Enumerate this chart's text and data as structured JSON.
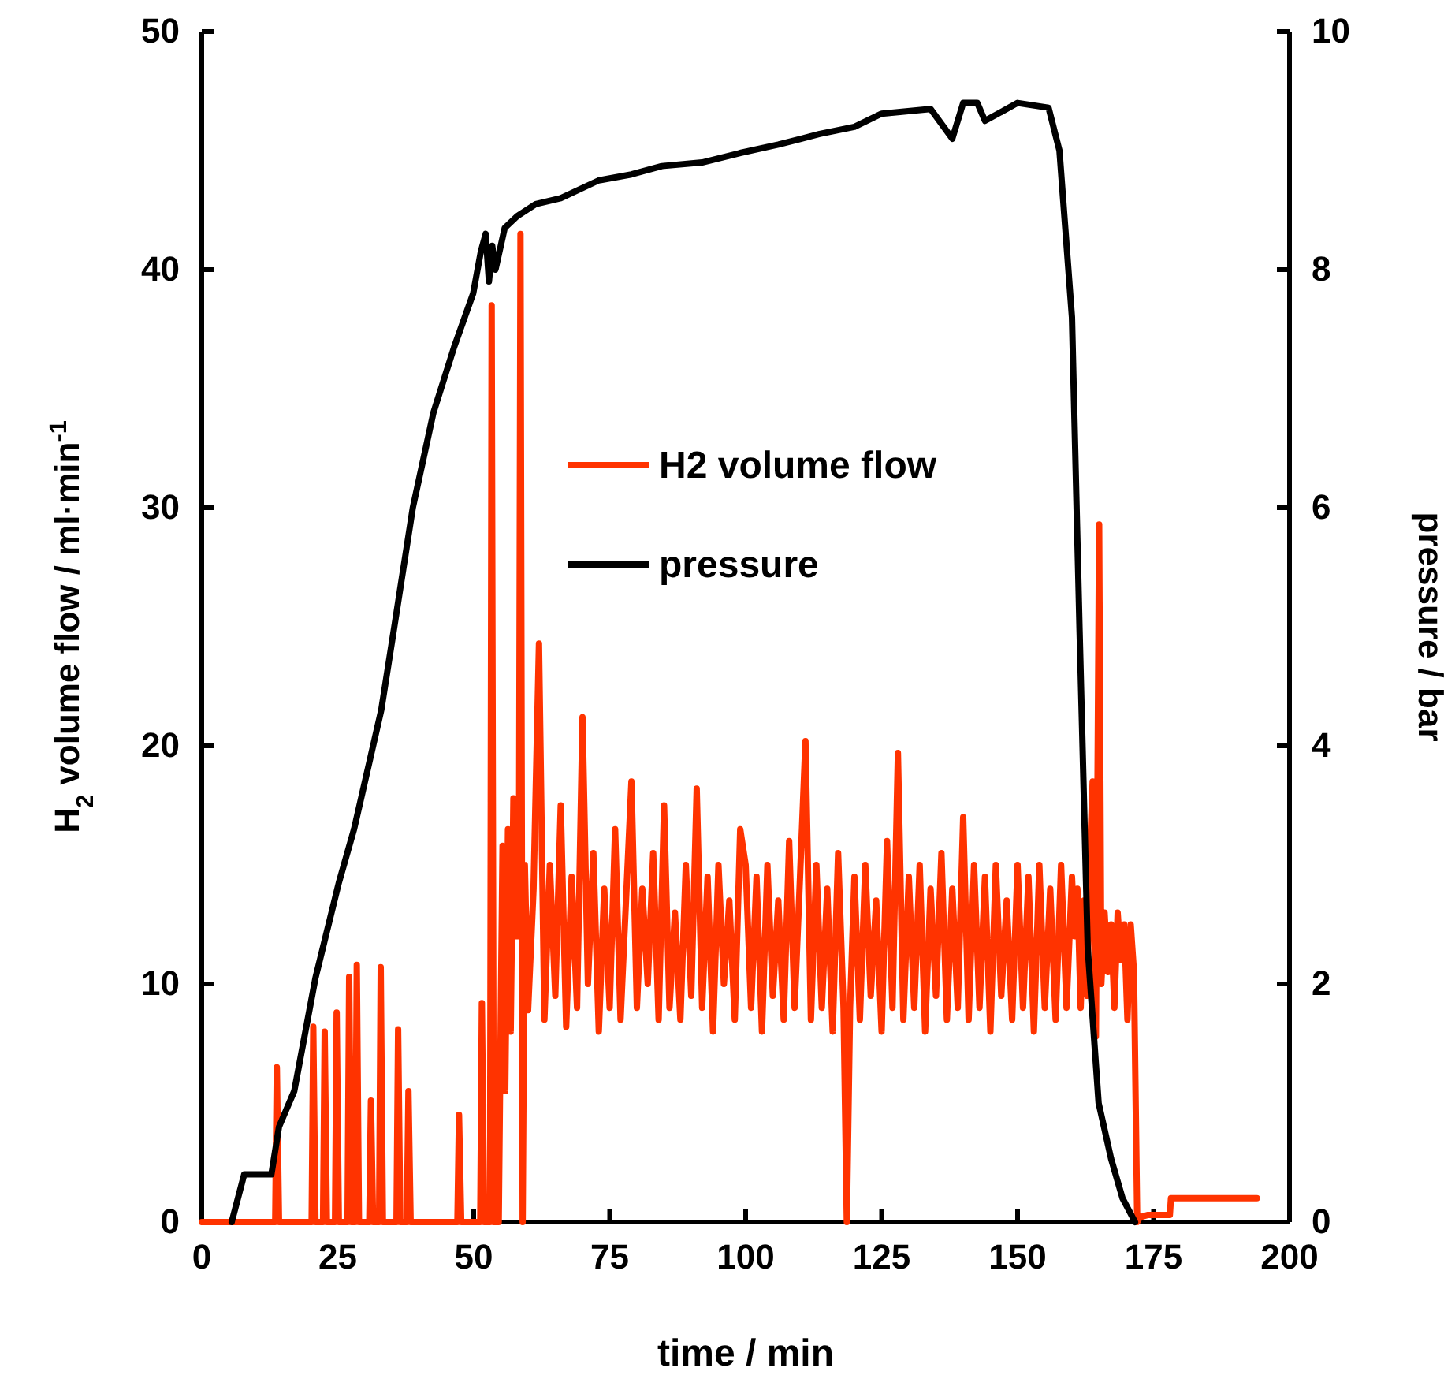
{
  "chart_data": {
    "type": "line",
    "xlabel": "time / min",
    "ylabel": "H$_{2}$ volume flow / ml·min$^{-1}$",
    "y2label": "pressure / bar",
    "xlim": [
      0,
      200
    ],
    "xticks": [
      0,
      25,
      50,
      75,
      100,
      125,
      150,
      175,
      200
    ],
    "ylim": [
      0,
      50
    ],
    "yticks": [
      0,
      10,
      20,
      30,
      40,
      50
    ],
    "y2lim": [
      0,
      10
    ],
    "y2ticks": [
      0,
      2,
      4,
      6,
      8,
      10
    ],
    "grid": false,
    "legend": "top",
    "line_style": "solid",
    "marker": "none",
    "series": [
      {
        "name": "H2 volume flow",
        "color": "#ff3300",
        "x": [
          0,
          13.5,
          13.8,
          14.2,
          20.2,
          20.5,
          20.9,
          22.3,
          22.6,
          23,
          24.5,
          24.8,
          25.2,
          26.8,
          27.1,
          27.5,
          28.2,
          28.5,
          28.9,
          30.8,
          31.1,
          31.5,
          32.6,
          32.9,
          33.3,
          35.8,
          36.1,
          36.5,
          37.7,
          38,
          38.4,
          47,
          47.3,
          47.7,
          51.2,
          51.5,
          51.9,
          53,
          53.3,
          53.7,
          54.6,
          54.9,
          55.3,
          55.8,
          56.3,
          56.8,
          57.3,
          57.8,
          58.3,
          58.6,
          59,
          59.4,
          60,
          61,
          62,
          63,
          64,
          65,
          66,
          67,
          68,
          69,
          70,
          71,
          72,
          73,
          74,
          75,
          76,
          77,
          78,
          79,
          80,
          81,
          82,
          83,
          84,
          85,
          86,
          87,
          88,
          89,
          90,
          91,
          92,
          93,
          94,
          95,
          96,
          97,
          98,
          99,
          100,
          101,
          102,
          103,
          104,
          105,
          106,
          107,
          108,
          109,
          110,
          111,
          112,
          113,
          114,
          115,
          116,
          117,
          118,
          118.6,
          119.2,
          120,
          121,
          122,
          123,
          124,
          125,
          126,
          127,
          128,
          129,
          130,
          131,
          132,
          133,
          134,
          135,
          136,
          137,
          138,
          139,
          140,
          141,
          142,
          143,
          144,
          145,
          146,
          147,
          148,
          149,
          150,
          151,
          152,
          153,
          154,
          155,
          156,
          157,
          158,
          159,
          160,
          160.5,
          161,
          161.6,
          162.2,
          162.8,
          163.4,
          163.8,
          164.4,
          165,
          165.4,
          166,
          166.6,
          167.2,
          167.8,
          168.4,
          169,
          169.6,
          170.2,
          170.8,
          171.4,
          172,
          172.5,
          174,
          178,
          178.2,
          194
        ],
        "values": [
          0,
          0,
          6.5,
          0,
          0,
          8.2,
          0,
          0,
          8,
          0,
          0,
          8.8,
          0,
          0,
          10.3,
          0,
          0,
          10.8,
          0,
          0,
          5.1,
          0,
          0,
          10.7,
          0,
          0,
          8.1,
          0,
          0,
          5.5,
          0,
          0,
          4.5,
          0,
          0,
          9.2,
          0,
          0,
          38.5,
          0,
          0,
          7,
          15.8,
          5.5,
          16.5,
          8,
          17.8,
          12,
          12,
          41.5,
          0,
          15,
          8.9,
          14,
          24.3,
          8.5,
          15,
          9.5,
          17.5,
          8.2,
          14.5,
          9,
          21.2,
          10,
          15.5,
          8,
          14,
          9,
          16.5,
          8.5,
          13.5,
          18.5,
          9,
          14,
          10,
          15.5,
          8.5,
          17.5,
          9,
          13,
          8.5,
          15,
          9.5,
          18.2,
          9,
          14.5,
          8,
          15,
          10,
          13.5,
          8.5,
          16.5,
          15,
          9,
          14.5,
          8,
          15,
          9.5,
          13.5,
          8.5,
          16,
          9,
          14.5,
          20.2,
          8.5,
          15,
          9,
          14,
          8,
          15.5,
          9,
          0,
          9,
          14.5,
          8.5,
          15,
          9.5,
          13.5,
          8,
          16,
          9,
          19.7,
          8.5,
          14.5,
          9,
          15,
          8,
          14,
          9.5,
          15.5,
          8.5,
          14,
          9,
          17,
          8.5,
          15,
          9,
          14.5,
          8,
          15,
          9.5,
          13.5,
          8.5,
          15,
          9,
          14.5,
          8,
          15,
          9,
          14,
          8.5,
          15,
          9,
          14.5,
          12,
          14,
          9,
          13.5,
          9.5,
          16,
          18.5,
          7.8,
          29.3,
          10,
          13,
          10.5,
          12.5,
          9,
          13,
          11,
          12.5,
          8.5,
          12.5,
          10.5,
          0,
          0.2,
          0.3,
          0.3,
          1,
          1
        ]
      },
      {
        "name": "pressure",
        "color": "#000000",
        "axis": "y2",
        "x": [
          5.5,
          7.8,
          12.8,
          14.2,
          17,
          20.9,
          25.2,
          28,
          31,
          33,
          35.4,
          38.8,
          42.6,
          46.4,
          49.9,
          51.3,
          52.2,
          52.8,
          53.4,
          54,
          55.7,
          58,
          61.4,
          66,
          73,
          79,
          84.6,
          92,
          99,
          106,
          113.6,
          120,
          125,
          134,
          138,
          140,
          142.6,
          144,
          150,
          155.7,
          157.7,
          160,
          161.4,
          162.9,
          164.9,
          167.2,
          169.3,
          171.6
        ],
        "values": [
          0,
          0.4,
          0.4,
          0.8,
          1.1,
          2.05,
          2.85,
          3.3,
          3.9,
          4.3,
          5,
          6,
          6.8,
          7.35,
          7.8,
          8.15,
          8.3,
          7.9,
          8.2,
          8,
          8.35,
          8.45,
          8.55,
          8.6,
          8.75,
          8.8,
          8.87,
          8.9,
          8.98,
          9.05,
          9.14,
          9.2,
          9.31,
          9.35,
          9.1,
          9.4,
          9.4,
          9.25,
          9.4,
          9.36,
          9,
          7.6,
          4.97,
          2.3,
          1,
          0.53,
          0.2,
          0
        ]
      }
    ]
  }
}
